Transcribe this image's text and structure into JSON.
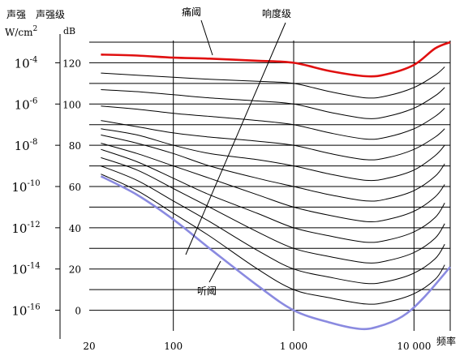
{
  "chart_data": {
    "type": "line",
    "title": "",
    "left_axis": {
      "title_line1": "声强",
      "title_line2_base": "W/cm",
      "title_line2_sup": "2",
      "ticks": [
        {
          "base": "10",
          "exp": "-4",
          "db": 120
        },
        {
          "base": "10",
          "exp": "-6",
          "db": 100
        },
        {
          "base": "10",
          "exp": "-8",
          "db": 80
        },
        {
          "base": "10",
          "exp": "-10",
          "db": 60
        },
        {
          "base": "10",
          "exp": "-12",
          "db": 40
        },
        {
          "base": "10",
          "exp": "-14",
          "db": 20
        },
        {
          "base": "10",
          "exp": "-16",
          "db": 0
        }
      ]
    },
    "db_axis": {
      "title_line1": "声强级",
      "title_line2": "dB",
      "ticks": [
        {
          "label": "120",
          "value": 120
        },
        {
          "label": "100",
          "value": 100
        },
        {
          "label": "80",
          "value": 80
        },
        {
          "label": "60",
          "value": 60
        },
        {
          "label": "40",
          "value": 40
        },
        {
          "label": "20",
          "value": 20
        },
        {
          "label": "0",
          "value": 0
        }
      ],
      "ylim": [
        -10,
        130
      ],
      "grid_step": 10
    },
    "x_axis": {
      "label": "频率",
      "scale": "log",
      "xlim": [
        20,
        20000
      ],
      "ticks": [
        {
          "label": "20",
          "value": 20
        },
        {
          "label": "100",
          "value": 100
        },
        {
          "label": "1 000",
          "value": 1000
        },
        {
          "label": "10 000",
          "value": 10000
        }
      ],
      "gridlines": [
        100,
        1000,
        10000
      ]
    },
    "colors": {
      "pain": "#e01010",
      "hearing": "#8a8ae0",
      "contour": "#000000",
      "grid": "#000000"
    },
    "series": [
      {
        "name": "痛阈",
        "kind": "pain",
        "points": [
          [
            25,
            124
          ],
          [
            50,
            123.5
          ],
          [
            100,
            122.5
          ],
          [
            200,
            122
          ],
          [
            500,
            121
          ],
          [
            1000,
            120
          ],
          [
            2000,
            116
          ],
          [
            4000,
            113.5
          ],
          [
            6000,
            114.5
          ],
          [
            10000,
            119
          ],
          [
            15000,
            127
          ],
          [
            20000,
            130
          ]
        ]
      },
      {
        "name": "",
        "kind": "contour",
        "points": [
          [
            25,
            115
          ],
          [
            50,
            114
          ],
          [
            100,
            113
          ],
          [
            200,
            112
          ],
          [
            500,
            111
          ],
          [
            1000,
            110
          ],
          [
            2000,
            106
          ],
          [
            4000,
            103
          ],
          [
            6000,
            104
          ],
          [
            10000,
            108
          ],
          [
            15000,
            114
          ],
          [
            18000,
            118
          ]
        ]
      },
      {
        "name": "",
        "kind": "contour",
        "points": [
          [
            25,
            107
          ],
          [
            50,
            106
          ],
          [
            100,
            104.5
          ],
          [
            200,
            103
          ],
          [
            500,
            101.5
          ],
          [
            1000,
            100
          ],
          [
            2000,
            96
          ],
          [
            4000,
            93
          ],
          [
            6000,
            94
          ],
          [
            10000,
            98
          ],
          [
            15000,
            104
          ],
          [
            18000,
            108
          ]
        ]
      },
      {
        "name": "",
        "kind": "contour",
        "points": [
          [
            25,
            99
          ],
          [
            50,
            97.5
          ],
          [
            100,
            95.5
          ],
          [
            200,
            94
          ],
          [
            500,
            92
          ],
          [
            1000,
            90
          ],
          [
            2000,
            86
          ],
          [
            4000,
            83
          ],
          [
            6000,
            84
          ],
          [
            10000,
            88
          ],
          [
            15000,
            94
          ],
          [
            18000,
            98
          ]
        ]
      },
      {
        "name": "",
        "kind": "contour",
        "points": [
          [
            25,
            92
          ],
          [
            50,
            89
          ],
          [
            100,
            86
          ],
          [
            200,
            84
          ],
          [
            500,
            82
          ],
          [
            1000,
            80
          ],
          [
            2000,
            76
          ],
          [
            4000,
            73
          ],
          [
            6000,
            74
          ],
          [
            10000,
            78
          ],
          [
            15000,
            84
          ],
          [
            18000,
            88
          ]
        ]
      },
      {
        "name": "",
        "kind": "contour",
        "points": [
          [
            25,
            88
          ],
          [
            50,
            85
          ],
          [
            100,
            80
          ],
          [
            200,
            76
          ],
          [
            500,
            73
          ],
          [
            1000,
            70
          ],
          [
            2000,
            66
          ],
          [
            4000,
            63
          ],
          [
            6000,
            64
          ],
          [
            10000,
            68
          ],
          [
            15000,
            75
          ],
          [
            18000,
            80
          ]
        ]
      },
      {
        "name": "",
        "kind": "contour",
        "points": [
          [
            25,
            85
          ],
          [
            50,
            81
          ],
          [
            100,
            76
          ],
          [
            200,
            70
          ],
          [
            500,
            64
          ],
          [
            1000,
            60
          ],
          [
            2000,
            56
          ],
          [
            4000,
            53
          ],
          [
            6000,
            54
          ],
          [
            10000,
            58
          ],
          [
            15000,
            65
          ],
          [
            18000,
            71
          ]
        ]
      },
      {
        "name": "",
        "kind": "contour",
        "points": [
          [
            25,
            81
          ],
          [
            50,
            76
          ],
          [
            100,
            70
          ],
          [
            200,
            64
          ],
          [
            500,
            56
          ],
          [
            1000,
            50
          ],
          [
            2000,
            46
          ],
          [
            4000,
            43
          ],
          [
            6000,
            44
          ],
          [
            10000,
            48
          ],
          [
            15000,
            55
          ],
          [
            18000,
            61
          ]
        ]
      },
      {
        "name": "",
        "kind": "contour",
        "points": [
          [
            25,
            78
          ],
          [
            50,
            72
          ],
          [
            100,
            64
          ],
          [
            200,
            56
          ],
          [
            500,
            47
          ],
          [
            1000,
            40
          ],
          [
            2000,
            36
          ],
          [
            4000,
            33
          ],
          [
            6000,
            34
          ],
          [
            10000,
            38
          ],
          [
            15000,
            45
          ],
          [
            18000,
            52
          ]
        ]
      },
      {
        "name": "",
        "kind": "contour",
        "points": [
          [
            25,
            74
          ],
          [
            50,
            68
          ],
          [
            100,
            59
          ],
          [
            200,
            50
          ],
          [
            500,
            38
          ],
          [
            1000,
            30
          ],
          [
            2000,
            26
          ],
          [
            4000,
            23
          ],
          [
            6000,
            24
          ],
          [
            10000,
            28
          ],
          [
            15000,
            35
          ],
          [
            18000,
            42
          ]
        ]
      },
      {
        "name": "",
        "kind": "contour",
        "points": [
          [
            25,
            70
          ],
          [
            50,
            63
          ],
          [
            100,
            53
          ],
          [
            200,
            43
          ],
          [
            500,
            29
          ],
          [
            1000,
            20
          ],
          [
            2000,
            16
          ],
          [
            4000,
            13
          ],
          [
            6000,
            14
          ],
          [
            10000,
            18
          ],
          [
            15000,
            25
          ],
          [
            18000,
            32
          ]
        ]
      },
      {
        "name": "",
        "kind": "contour",
        "points": [
          [
            25,
            66
          ],
          [
            50,
            58
          ],
          [
            100,
            47
          ],
          [
            200,
            36
          ],
          [
            500,
            20
          ],
          [
            1000,
            10
          ],
          [
            2000,
            6
          ],
          [
            4000,
            3
          ],
          [
            6000,
            4
          ],
          [
            10000,
            8
          ],
          [
            15000,
            15
          ],
          [
            18000,
            22
          ]
        ]
      },
      {
        "name": "听阈",
        "kind": "hearing",
        "points": [
          [
            25,
            65
          ],
          [
            50,
            56
          ],
          [
            100,
            44
          ],
          [
            200,
            30
          ],
          [
            500,
            12
          ],
          [
            1000,
            0
          ],
          [
            2000,
            -6
          ],
          [
            3500,
            -9
          ],
          [
            5000,
            -8
          ],
          [
            8000,
            -3
          ],
          [
            12000,
            6
          ],
          [
            20000,
            21
          ]
        ]
      }
    ],
    "annotations": {
      "pain_label": "痛阈",
      "loudness_label": "响度级",
      "hearing_label": "听阈"
    },
    "grid": true
  }
}
